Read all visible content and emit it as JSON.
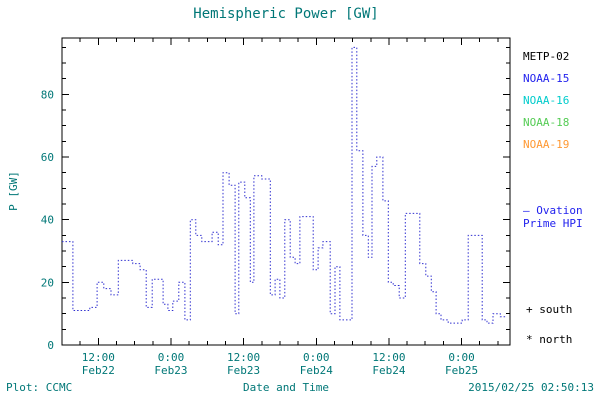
{
  "header": {
    "title": "Hemispheric Power [GW]"
  },
  "legend": {
    "satellites": [
      {
        "label": "METP-02",
        "color": "#000000"
      },
      {
        "label": "NOAA-15",
        "color": "#2222ee"
      },
      {
        "label": "NOAA-16",
        "color": "#00cccc"
      },
      {
        "label": "NOAA-18",
        "color": "#55cc55"
      },
      {
        "label": "NOAA-19",
        "color": "#ff9933"
      }
    ],
    "series_note_line1": "– Ovation",
    "series_note_line2": "Prime HPI",
    "series_note_color": "#2222ee",
    "marker_south": "+ south",
    "marker_north": "* north"
  },
  "footer": {
    "source": "Plot: CCMC",
    "timestamp": "2015/02/25 02:50:13"
  },
  "colors": {
    "label_text": "#007777",
    "axis": "#000000",
    "data_line": "#3030d0"
  },
  "chart_data": {
    "type": "line",
    "subtype": "dotted-step",
    "title": "Hemispheric Power [GW]",
    "xlabel": "Date and Time",
    "ylabel": "P [GW]",
    "ylim": [
      0,
      98
    ],
    "yticks": [
      0,
      20,
      40,
      60,
      80
    ],
    "y_minor_step": 5,
    "xlim_hours": [
      0,
      74
    ],
    "x_unit": "hours since 2015-02-22 06:00",
    "x_major_ticks": [
      {
        "h": 6,
        "time": "12:00",
        "date": "Feb22"
      },
      {
        "h": 18,
        "time": "0:00",
        "date": "Feb23"
      },
      {
        "h": 30,
        "time": "12:00",
        "date": "Feb23"
      },
      {
        "h": 42,
        "time": "0:00",
        "date": "Feb24"
      },
      {
        "h": 54,
        "time": "12:00",
        "date": "Feb24"
      },
      {
        "h": 66,
        "time": "0:00",
        "date": "Feb25"
      }
    ],
    "x_minor_step": 3,
    "line_color": "#3030d0",
    "series": [
      {
        "name": "Ovation Prime HPI",
        "points": [
          [
            0,
            33
          ],
          [
            1.8,
            11
          ],
          [
            4.6,
            12
          ],
          [
            5.8,
            20
          ],
          [
            6.9,
            18
          ],
          [
            8.1,
            16
          ],
          [
            9.3,
            27
          ],
          [
            11.7,
            26
          ],
          [
            12.9,
            24
          ],
          [
            13.9,
            12
          ],
          [
            14.9,
            21
          ],
          [
            16.7,
            13
          ],
          [
            17.5,
            11
          ],
          [
            18.3,
            14
          ],
          [
            19.3,
            20
          ],
          [
            20.3,
            8
          ],
          [
            21.2,
            40
          ],
          [
            22.1,
            35
          ],
          [
            23.1,
            33
          ],
          [
            24.8,
            36
          ],
          [
            25.8,
            32
          ],
          [
            26.6,
            55
          ],
          [
            27.6,
            51
          ],
          [
            28.6,
            10
          ],
          [
            29.2,
            52
          ],
          [
            30.2,
            47
          ],
          [
            31.1,
            20
          ],
          [
            31.7,
            54
          ],
          [
            33,
            53
          ],
          [
            34.4,
            16
          ],
          [
            35.2,
            21
          ],
          [
            36,
            15
          ],
          [
            36.8,
            40
          ],
          [
            37.7,
            28
          ],
          [
            38.5,
            26
          ],
          [
            39.3,
            41
          ],
          [
            40.5,
            41
          ],
          [
            41.5,
            24
          ],
          [
            42.3,
            31
          ],
          [
            43.1,
            33
          ],
          [
            44.3,
            10
          ],
          [
            45.1,
            25
          ],
          [
            45.9,
            8
          ],
          [
            47.9,
            95
          ],
          [
            48.7,
            62
          ],
          [
            49.7,
            35
          ],
          [
            50.6,
            28
          ],
          [
            51.2,
            57
          ],
          [
            52,
            60
          ],
          [
            53,
            46
          ],
          [
            53.9,
            20
          ],
          [
            54.7,
            19
          ],
          [
            55.7,
            15
          ],
          [
            56.7,
            42
          ],
          [
            59.1,
            26
          ],
          [
            60.1,
            22
          ],
          [
            61,
            17
          ],
          [
            61.8,
            10
          ],
          [
            62.6,
            8
          ],
          [
            63.8,
            7
          ],
          [
            66.1,
            8
          ],
          [
            67.1,
            35
          ],
          [
            69.4,
            8
          ],
          [
            70.2,
            7
          ],
          [
            71.2,
            10
          ],
          [
            72.4,
            9
          ],
          [
            73.5,
            9
          ]
        ]
      }
    ]
  }
}
